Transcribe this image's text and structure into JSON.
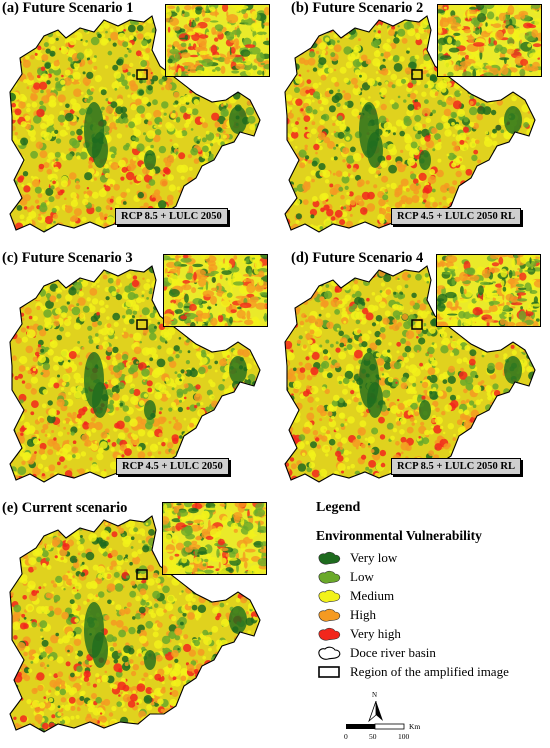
{
  "panels": [
    {
      "id": "a",
      "title": "(a) Future Scenario 1",
      "scenario": "RCP 8.5 + LULC 2050"
    },
    {
      "id": "b",
      "title": "(b) Future Scenario 2",
      "scenario": "RCP 4.5 + LULC 2050 RL"
    },
    {
      "id": "c",
      "title": "(c) Future Scenario 3",
      "scenario": "RCP 4.5 + LULC 2050"
    },
    {
      "id": "d",
      "title": "(d) Future Scenario 4",
      "scenario": "RCP 8.5 + LULC 2050 RL"
    },
    {
      "id": "e",
      "title": "(e) Current scenario",
      "scenario": ""
    }
  ],
  "legend": {
    "title": "Legend",
    "subtitle": "Environmental Vulnerability",
    "classes": [
      {
        "label": "Very low",
        "color": "#1e6b1e"
      },
      {
        "label": "Low",
        "color": "#6aa92a"
      },
      {
        "label": "Medium",
        "color": "#f2f21a"
      },
      {
        "label": "High",
        "color": "#f59a22"
      },
      {
        "label": "Very high",
        "color": "#f2271c"
      }
    ],
    "basin_label": "Doce river basin",
    "region_label": "Region of the amplified image"
  },
  "north_arrow": {
    "label": "N"
  },
  "scale": {
    "unit": "Km",
    "ticks": [
      "0",
      "50",
      "100"
    ]
  }
}
